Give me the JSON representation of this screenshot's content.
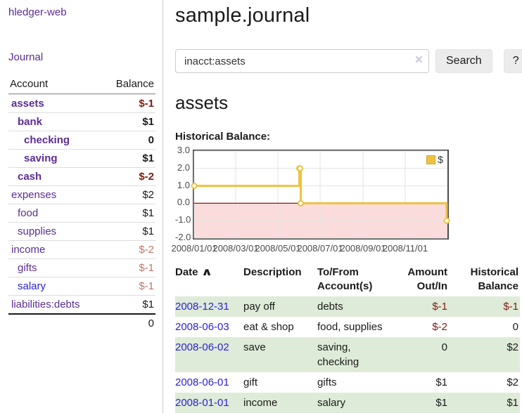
{
  "colors": {
    "link_purple": "#5b2d91",
    "link_blue": "#2b21d9",
    "negative_strong": "#7f1a10",
    "negative_soft": "#c1766d",
    "row_stripe_green": "#deebd8",
    "series_gold": "#edc240",
    "negative_region_pink": "#fbdcdc",
    "zero_line_red": "#9e1212"
  },
  "sidebar": {
    "brand": "hledger-web",
    "journal_link": "Journal",
    "accounts_table": {
      "account_header": "Account",
      "balance_header": "Balance",
      "rows": [
        {
          "name": "assets",
          "balance": "$-1"
        },
        {
          "name": "bank",
          "balance": "$1"
        },
        {
          "name": "checking",
          "balance": "0"
        },
        {
          "name": "saving",
          "balance": "$1"
        },
        {
          "name": "cash",
          "balance": "$-2"
        },
        {
          "name": "expenses",
          "balance": "$2"
        },
        {
          "name": "food",
          "balance": "$1"
        },
        {
          "name": "supplies",
          "balance": "$1"
        },
        {
          "name": "income",
          "balance": "$-2"
        },
        {
          "name": "gifts",
          "balance": "$-1"
        },
        {
          "name": "salary",
          "balance": "$-1"
        },
        {
          "name": "liabilities:debts",
          "balance": "$1"
        }
      ],
      "total": "0"
    }
  },
  "main": {
    "title": "sample.journal",
    "search": {
      "value": "inacct:assets",
      "clear_icon": "×",
      "search_button": "Search",
      "help_button": "?"
    },
    "account_heading": "assets",
    "chart_label": "Historical Balance:"
  },
  "chart_data": {
    "type": "line",
    "style": "step",
    "title": "Historical Balance:",
    "series": [
      {
        "name": "$",
        "color": "#edc240",
        "points": [
          {
            "date": "2008-01-01",
            "value": 1
          },
          {
            "date": "2008-06-01",
            "value": 2
          },
          {
            "date": "2008-06-02",
            "value": 2
          },
          {
            "date": "2008-06-03",
            "value": 0
          },
          {
            "date": "2008-12-31",
            "value": -1
          }
        ]
      }
    ],
    "x_ticks": [
      "2008/01/01",
      "2008/03/01",
      "2008/05/01",
      "2008/07/01",
      "2008/09/01",
      "2008/11/01"
    ],
    "y_ticks": [
      "3.0",
      "2.0",
      "1.0",
      "0.0",
      "-1.0",
      "-2.0"
    ],
    "xlim": [
      "2008-01-01",
      "2009-01-01"
    ],
    "ylim": [
      -2,
      3
    ],
    "grid": true,
    "legend": {
      "label": "$",
      "position": "top-right"
    },
    "negative_region_color": "#fbdcdc",
    "zero_line_color": "#9e1212"
  },
  "register_table": {
    "headers": {
      "date": "Date",
      "description": "Description",
      "account": "To/From Account(s)",
      "amount": "Amount Out/In",
      "balance": "Historical Balance"
    },
    "sort_icon": "∧",
    "rows": [
      {
        "date": "2008-12-31",
        "description": "pay off",
        "account": "debts",
        "amount": "$-1",
        "balance": "$-1"
      },
      {
        "date": "2008-06-03",
        "description": "eat & shop",
        "account": "food, supplies",
        "amount": "$-2",
        "balance": "0"
      },
      {
        "date": "2008-06-02",
        "description": "save",
        "account": "saving, checking",
        "amount": "0",
        "balance": "$2"
      },
      {
        "date": "2008-06-01",
        "description": "gift",
        "account": "gifts",
        "amount": "$1",
        "balance": "$2"
      },
      {
        "date": "2008-01-01",
        "description": "income",
        "account": "salary",
        "amount": "$1",
        "balance": "$1"
      }
    ]
  }
}
